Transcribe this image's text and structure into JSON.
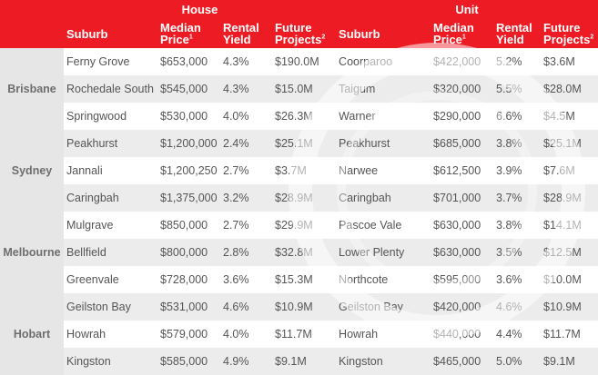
{
  "header": {
    "house": "House",
    "unit": "Unit",
    "cols": {
      "suburb": "Suburb",
      "median_l1": "Median",
      "median_l2": "Price",
      "median_sup": "1",
      "rental_l1": "Rental",
      "rental_l2": "Yield",
      "future_l1": "Future",
      "future_l2": "Projects",
      "future_sup": "2"
    }
  },
  "rows": [
    {
      "city": "Brisbane",
      "h_suburb": "Ferny Grove",
      "h_price": "$653,000",
      "h_yield": "4.3%",
      "h_proj": "$190.0M",
      "u_suburb": "Coorparoo",
      "u_price": "$422,000",
      "u_yield": "5.2%",
      "u_proj": "$3.6M"
    },
    {
      "city": "",
      "h_suburb": "Rochedale South",
      "h_price": "$545,000",
      "h_yield": "4.3%",
      "h_proj": "$15.0M",
      "u_suburb": "Taigum",
      "u_price": "$320,000",
      "u_yield": "5.5%",
      "u_proj": "$28.0M"
    },
    {
      "city": "",
      "h_suburb": "Springwood",
      "h_price": "$530,000",
      "h_yield": "4.0%",
      "h_proj": "$26.3M",
      "u_suburb": "Warner",
      "u_price": "$290,000",
      "u_yield": "6.6%",
      "u_proj": "$4.5M"
    },
    {
      "city": "Sydney",
      "h_suburb": "Peakhurst",
      "h_price": "$1,200,000",
      "h_yield": "2.4%",
      "h_proj": "$25.1M",
      "u_suburb": "Peakhurst",
      "u_price": "$685,000",
      "u_yield": "3.8%",
      "u_proj": "$25.1M"
    },
    {
      "city": "",
      "h_suburb": "Jannali",
      "h_price": "$1,200,250",
      "h_yield": "2.7%",
      "h_proj": "$3.7M",
      "u_suburb": "Narwee",
      "u_price": "$612,500",
      "u_yield": "3.9%",
      "u_proj": "$7.6M"
    },
    {
      "city": "",
      "h_suburb": "Caringbah",
      "h_price": "$1,375,000",
      "h_yield": "3.2%",
      "h_proj": "$28.9M",
      "u_suburb": "Caringbah",
      "u_price": "$701,000",
      "u_yield": "3.7%",
      "u_proj": "$28.9M"
    },
    {
      "city": "Melbourne",
      "h_suburb": "Mulgrave",
      "h_price": "$850,000",
      "h_yield": "2.7%",
      "h_proj": "$29.9M",
      "u_suburb": "Pascoe Vale",
      "u_price": "$630,000",
      "u_yield": "3.8%",
      "u_proj": "$14.1M"
    },
    {
      "city": "",
      "h_suburb": "Bellfield",
      "h_price": "$800,000",
      "h_yield": "2.8%",
      "h_proj": "$32.8M",
      "u_suburb": "Lower Plenty",
      "u_price": "$630,000",
      "u_yield": "3.5%",
      "u_proj": "$12.5M"
    },
    {
      "city": "",
      "h_suburb": "Greenvale",
      "h_price": "$728,000",
      "h_yield": "3.6%",
      "h_proj": "$15.3M",
      "u_suburb": "Northcote",
      "u_price": "$595,000",
      "u_yield": "3.6%",
      "u_proj": "$10.0M"
    },
    {
      "city": "Hobart",
      "h_suburb": "Geilston Bay",
      "h_price": "$531,000",
      "h_yield": "4.6%",
      "h_proj": "$10.9M",
      "u_suburb": "Geilston Bay",
      "u_price": "$420,000",
      "u_yield": "4.6%",
      "u_proj": "$10.9M"
    },
    {
      "city": "",
      "h_suburb": "Howrah",
      "h_price": "$579,000",
      "h_yield": "4.0%",
      "h_proj": "$11.7M",
      "u_suburb": "Howrah",
      "u_price": "$440,000",
      "u_yield": "4.4%",
      "u_proj": "$11.7M"
    },
    {
      "city": "",
      "h_suburb": "Kingston",
      "h_price": "$585,000",
      "h_yield": "4.9%",
      "h_proj": "$9.1M",
      "u_suburb": "Kingston",
      "u_price": "$465,000",
      "u_yield": "5.0%",
      "u_proj": "$9.1M"
    }
  ]
}
